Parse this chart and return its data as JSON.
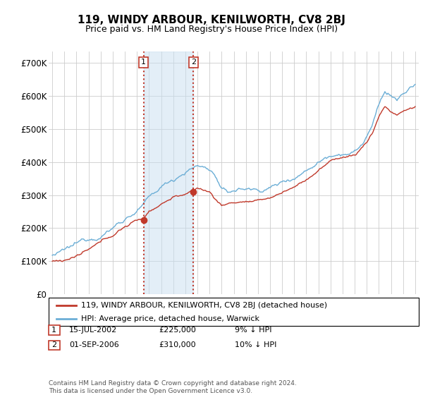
{
  "title": "119, WINDY ARBOUR, KENILWORTH, CV8 2BJ",
  "subtitle": "Price paid vs. HM Land Registry's House Price Index (HPI)",
  "legend_line1": "119, WINDY ARBOUR, KENILWORTH, CV8 2BJ (detached house)",
  "legend_line2": "HPI: Average price, detached house, Warwick",
  "table_rows": [
    {
      "num": "1",
      "date": "15-JUL-2002",
      "price": "£225,000",
      "note": "9% ↓ HPI"
    },
    {
      "num": "2",
      "date": "01-SEP-2006",
      "price": "£310,000",
      "note": "10% ↓ HPI"
    }
  ],
  "footer": "Contains HM Land Registry data © Crown copyright and database right 2024.\nThis data is licensed under the Open Government Licence v3.0.",
  "hpi_color": "#6baed6",
  "price_color": "#c0392b",
  "sale1_date": 2002.54,
  "sale1_price": 225000,
  "sale2_date": 2006.67,
  "sale2_price": 310000,
  "ylim": [
    0,
    735000
  ],
  "yticks": [
    0,
    100000,
    200000,
    300000,
    400000,
    500000,
    600000,
    700000
  ],
  "ytick_labels": [
    "£0",
    "£100K",
    "£200K",
    "£300K",
    "£400K",
    "£500K",
    "£600K",
    "£700K"
  ],
  "xlim_start": 1994.7,
  "xlim_end": 2025.3,
  "background_color": "#ffffff",
  "plot_bg_color": "#ffffff",
  "grid_color": "#cccccc"
}
